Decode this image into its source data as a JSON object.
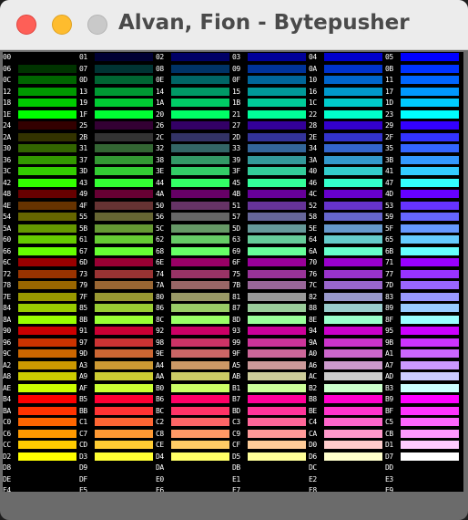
{
  "window": {
    "title": "Alvan, Fion - Bytepusher"
  },
  "palette": {
    "levels": [
      0,
      51,
      102,
      153,
      204,
      255
    ],
    "columns": 6,
    "entries": 256,
    "labels": [
      "00",
      "01",
      "02",
      "03",
      "04",
      "05",
      "06",
      "07",
      "08",
      "09",
      "0A",
      "0B",
      "0C",
      "0D",
      "0E",
      "0F",
      "10",
      "11",
      "12",
      "13",
      "14",
      "15",
      "16",
      "17",
      "18",
      "19",
      "1A",
      "1B",
      "1C",
      "1D",
      "1E",
      "1F",
      "20",
      "21",
      "22",
      "23",
      "24",
      "25",
      "26",
      "27",
      "28",
      "29",
      "2A",
      "2B",
      "2C",
      "2D",
      "2E",
      "2F",
      "30",
      "31",
      "32",
      "33",
      "34",
      "35",
      "36",
      "37",
      "38",
      "39",
      "3A",
      "3B",
      "3C",
      "3D",
      "3E",
      "3F",
      "40",
      "41",
      "42",
      "43",
      "44",
      "45",
      "46",
      "47",
      "48",
      "49",
      "4A",
      "4B",
      "4C",
      "4D",
      "4E",
      "4F",
      "50",
      "51",
      "52",
      "53",
      "54",
      "55",
      "56",
      "57",
      "58",
      "59",
      "5A",
      "5B",
      "5C",
      "5D",
      "5E",
      "5F",
      "60",
      "61",
      "62",
      "63",
      "64",
      "65",
      "66",
      "67",
      "68",
      "69",
      "6A",
      "6B",
      "6C",
      "6D",
      "6E",
      "6F",
      "70",
      "71",
      "72",
      "73",
      "74",
      "75",
      "76",
      "77",
      "78",
      "79",
      "7A",
      "7B",
      "7C",
      "7D",
      "7E",
      "7F",
      "80",
      "81",
      "82",
      "83",
      "84",
      "85",
      "86",
      "87",
      "88",
      "89",
      "8A",
      "8B",
      "8C",
      "8D",
      "8E",
      "8F",
      "90",
      "91",
      "92",
      "93",
      "94",
      "95",
      "96",
      "97",
      "98",
      "99",
      "9A",
      "9B",
      "9C",
      "9D",
      "9E",
      "9F",
      "A0",
      "A1",
      "A2",
      "A3",
      "A4",
      "A5",
      "A6",
      "A7",
      "A8",
      "A9",
      "AA",
      "AB",
      "AC",
      "AD",
      "AE",
      "AF",
      "B0",
      "B1",
      "B2",
      "B3",
      "B4",
      "B5",
      "B6",
      "B7",
      "B8",
      "B9",
      "BA",
      "BB",
      "BC",
      "BD",
      "BE",
      "BF",
      "C0",
      "C1",
      "C2",
      "C3",
      "C4",
      "C5",
      "C6",
      "C7",
      "C8",
      "C9",
      "CA",
      "CB",
      "CC",
      "CD",
      "CE",
      "CF",
      "D0",
      "D1",
      "D2",
      "D3",
      "D4",
      "D5",
      "D6",
      "D7",
      "D8",
      "D9",
      "DA",
      "DB",
      "DC",
      "DD",
      "DE",
      "DF",
      "E0",
      "E1",
      "E2",
      "E3",
      "E4",
      "E5",
      "E6",
      "E7",
      "E8",
      "E9",
      "EA",
      "EB",
      "EC",
      "ED",
      "EE",
      "EF",
      "F0",
      "F1",
      "F2",
      "F3",
      "F4",
      "F5",
      "F6",
      "F7",
      "F8",
      "F9",
      "FA",
      "FB",
      "FC",
      "FD",
      "FE",
      "FF"
    ]
  }
}
